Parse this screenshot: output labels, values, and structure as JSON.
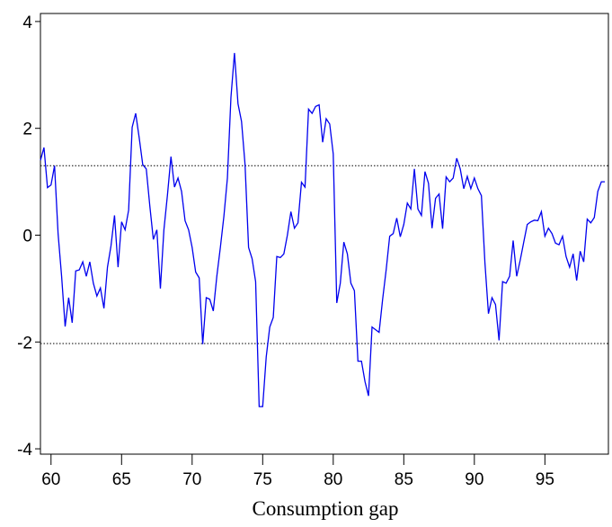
{
  "chart_data": {
    "type": "line",
    "xlabel": "Consumption gap",
    "xlim": [
      59.25,
      99.5
    ],
    "xticks": [
      60,
      65,
      70,
      75,
      80,
      85,
      90,
      95
    ],
    "ylim": [
      -4.1,
      4.15
    ],
    "yticks": [
      -4,
      -2,
      0,
      2,
      4
    ],
    "hlines": [
      1.3,
      -2.03
    ],
    "series": [
      {
        "color": "#0000ee",
        "values": [
          1.4,
          1.64,
          0.89,
          0.94,
          1.3,
          0.03,
          -0.77,
          -1.71,
          -1.17,
          -1.64,
          -0.67,
          -0.65,
          -0.5,
          -0.77,
          -0.5,
          -0.9,
          -1.14,
          -0.99,
          -1.37,
          -0.6,
          -0.2,
          0.37,
          -0.6,
          0.25,
          0.1,
          0.47,
          2.02,
          2.28,
          1.82,
          1.32,
          1.24,
          0.55,
          -0.08,
          0.1,
          -1.0,
          0.1,
          0.75,
          1.47,
          0.9,
          1.07,
          0.82,
          0.27,
          0.1,
          -0.23,
          -0.69,
          -0.8,
          -2.04,
          -1.17,
          -1.2,
          -1.42,
          -0.77,
          -0.23,
          0.35,
          1.07,
          2.58,
          3.41,
          2.46,
          2.13,
          1.32,
          -0.23,
          -0.44,
          -0.87,
          -3.21,
          -3.21,
          -2.28,
          -1.72,
          -1.54,
          -0.4,
          -0.42,
          -0.35,
          0,
          0.44,
          0.13,
          0.23,
          0.99,
          0.9,
          2.36,
          2.28,
          2.41,
          2.44,
          1.74,
          2.18,
          2.08,
          1.52,
          -1.27,
          -0.9,
          -0.13,
          -0.35,
          -0.9,
          -1.04,
          -2.36,
          -2.36,
          -2.74,
          -3.01,
          -1.72,
          -1.77,
          -1.82,
          -1.2,
          -0.65,
          -0.02,
          0.03,
          0.32,
          -0.03,
          0.2,
          0.6,
          0.49,
          1.24,
          0.49,
          0.37,
          1.19,
          0.97,
          0.13,
          0.69,
          0.77,
          0.12,
          1.09,
          1.0,
          1.07,
          1.44,
          1.24,
          0.87,
          1.1,
          0.87,
          1.07,
          0.87,
          0.74,
          -0.52,
          -1.47,
          -1.17,
          -1.3,
          -1.97,
          -0.87,
          -0.9,
          -0.77,
          -0.1,
          -0.77,
          -0.47,
          -0.13,
          0.2,
          0.25,
          0.28,
          0.27,
          0.44,
          -0.02,
          0.13,
          0.03,
          -0.15,
          -0.18,
          -0.02,
          -0.4,
          -0.6,
          -0.35,
          -0.85,
          -0.3,
          -0.5,
          0.3,
          0.23,
          0.33,
          0.82,
          1.0,
          1.0
        ]
      }
    ]
  }
}
